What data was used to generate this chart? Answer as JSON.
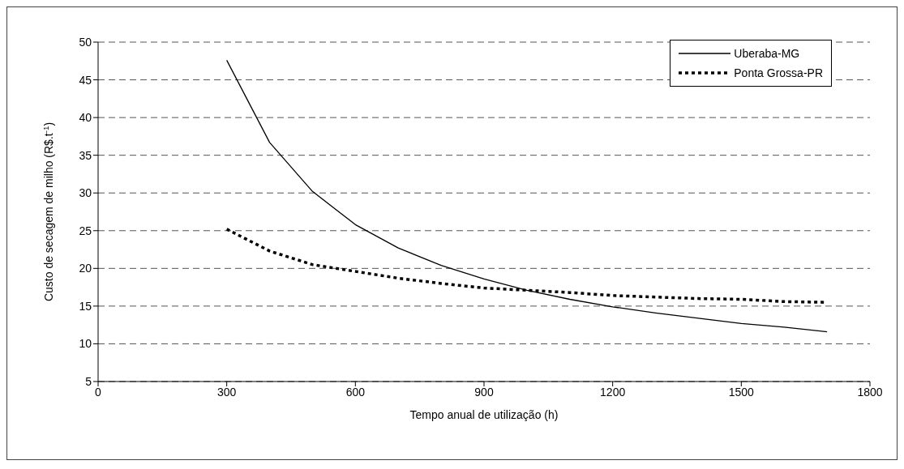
{
  "chart_data": {
    "type": "line",
    "xlabel": "Tempo anual de utilização (h)",
    "ylabel": "Custo de secagem de milho (R$.t$^{-1}$)",
    "x": [
      300,
      400,
      500,
      600,
      700,
      800,
      900,
      1000,
      1100,
      1200,
      1300,
      1400,
      1500,
      1600,
      1700
    ],
    "series": [
      {
        "name": "Uberaba-MG",
        "color": "#000000",
        "line_style": "solid",
        "values": [
          47.6,
          36.7,
          30.2,
          25.8,
          22.7,
          20.4,
          18.6,
          17.1,
          15.9,
          14.9,
          14.1,
          13.4,
          12.7,
          12.2,
          11.6
        ]
      },
      {
        "name": "Ponta Grossa-PR",
        "color": "#000000",
        "line_style": "dotted",
        "values": [
          25.2,
          22.3,
          20.5,
          19.6,
          18.7,
          18.0,
          17.4,
          17.1,
          16.8,
          16.4,
          16.2,
          16.0,
          15.9,
          15.6,
          15.5
        ]
      }
    ],
    "xlim": [
      0,
      1800
    ],
    "xticks": [
      0,
      300,
      600,
      900,
      1200,
      1500,
      1800
    ],
    "ylim": [
      5,
      50
    ],
    "yticks": [
      5,
      10,
      15,
      20,
      25,
      30,
      35,
      40,
      45,
      50
    ],
    "grid": "y",
    "legend": "top right",
    "marker": "none"
  }
}
